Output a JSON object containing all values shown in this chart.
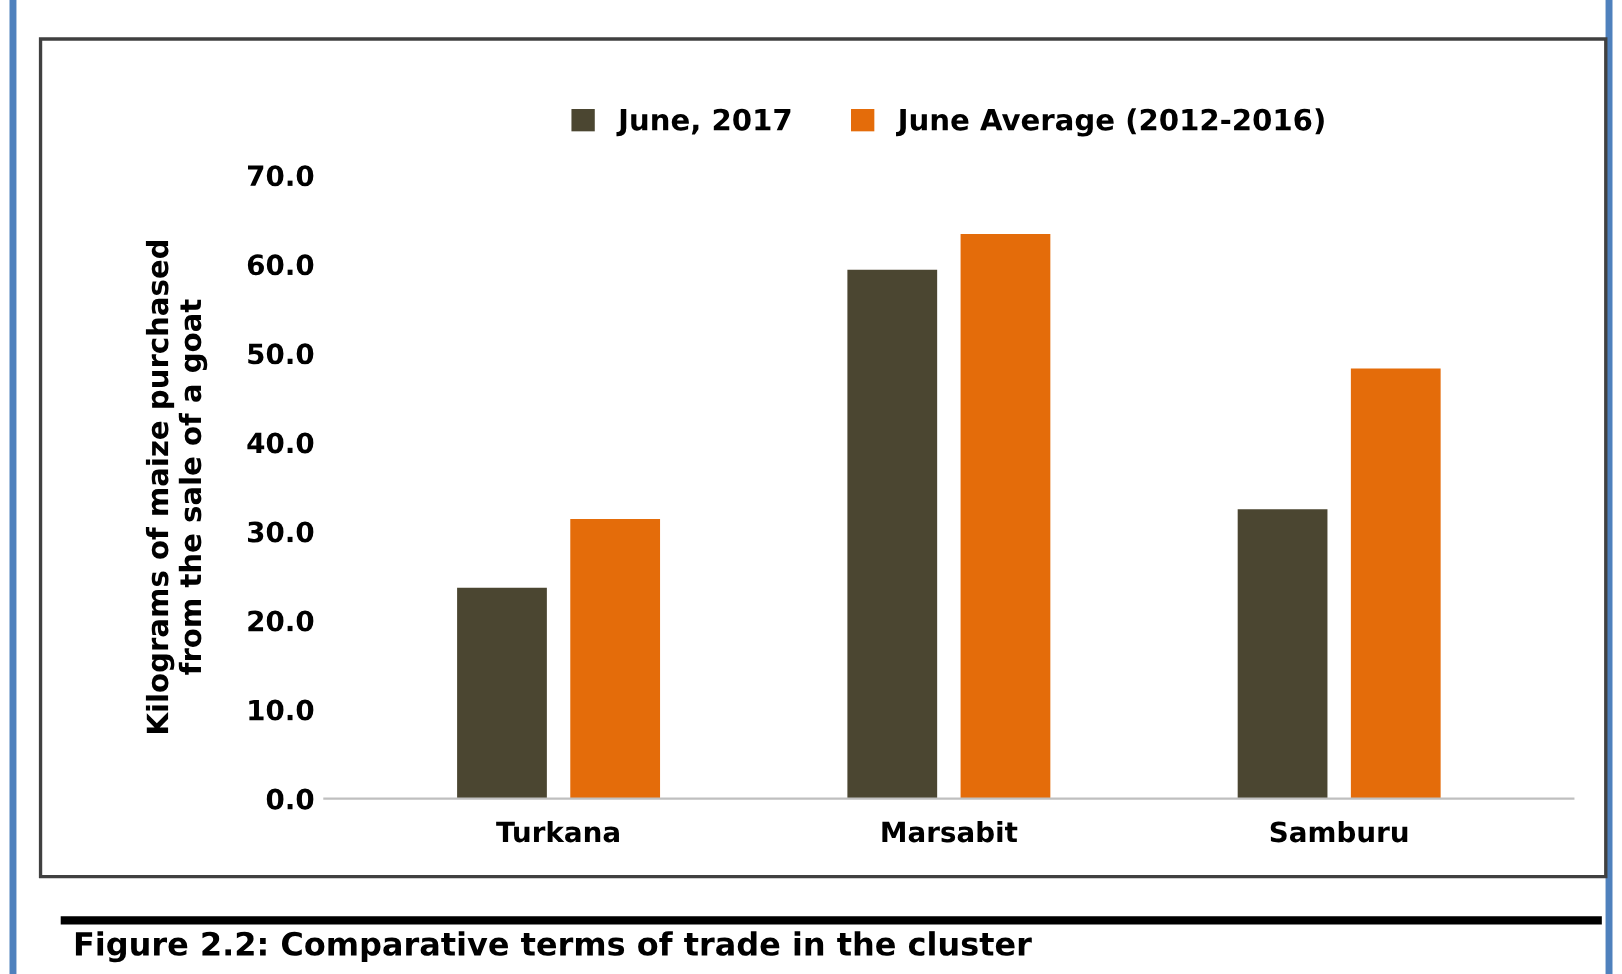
{
  "chart_data": {
    "type": "bar",
    "ylabel": "Kilograms of maize purchased\nfrom the sale of a goat",
    "categories": [
      "Turkana",
      "Marsabit",
      "Samburu"
    ],
    "series": [
      {
        "name": "June, 2017",
        "color": "#4b4631",
        "values": [
          23.7,
          59.4,
          32.5
        ]
      },
      {
        "name": "June Average (2012-2016)",
        "color": "#e46c0a",
        "values": [
          31.4,
          63.4,
          48.3
        ]
      }
    ],
    "ylim": [
      0,
      70
    ],
    "yticks": [
      {
        "value": 0,
        "label": "0.0"
      },
      {
        "value": 10,
        "label": "10.0"
      },
      {
        "value": 20,
        "label": "20.0"
      },
      {
        "value": 30,
        "label": "30.0"
      },
      {
        "value": 40,
        "label": "40.0"
      },
      {
        "value": 50,
        "label": "50.0"
      },
      {
        "value": 60,
        "label": "60.0"
      },
      {
        "value": 70,
        "label": "70.0"
      }
    ],
    "grid": false,
    "legend": "top",
    "annotations": [
      "Figure 2.2: Comparative terms of trade in the cluster"
    ]
  }
}
